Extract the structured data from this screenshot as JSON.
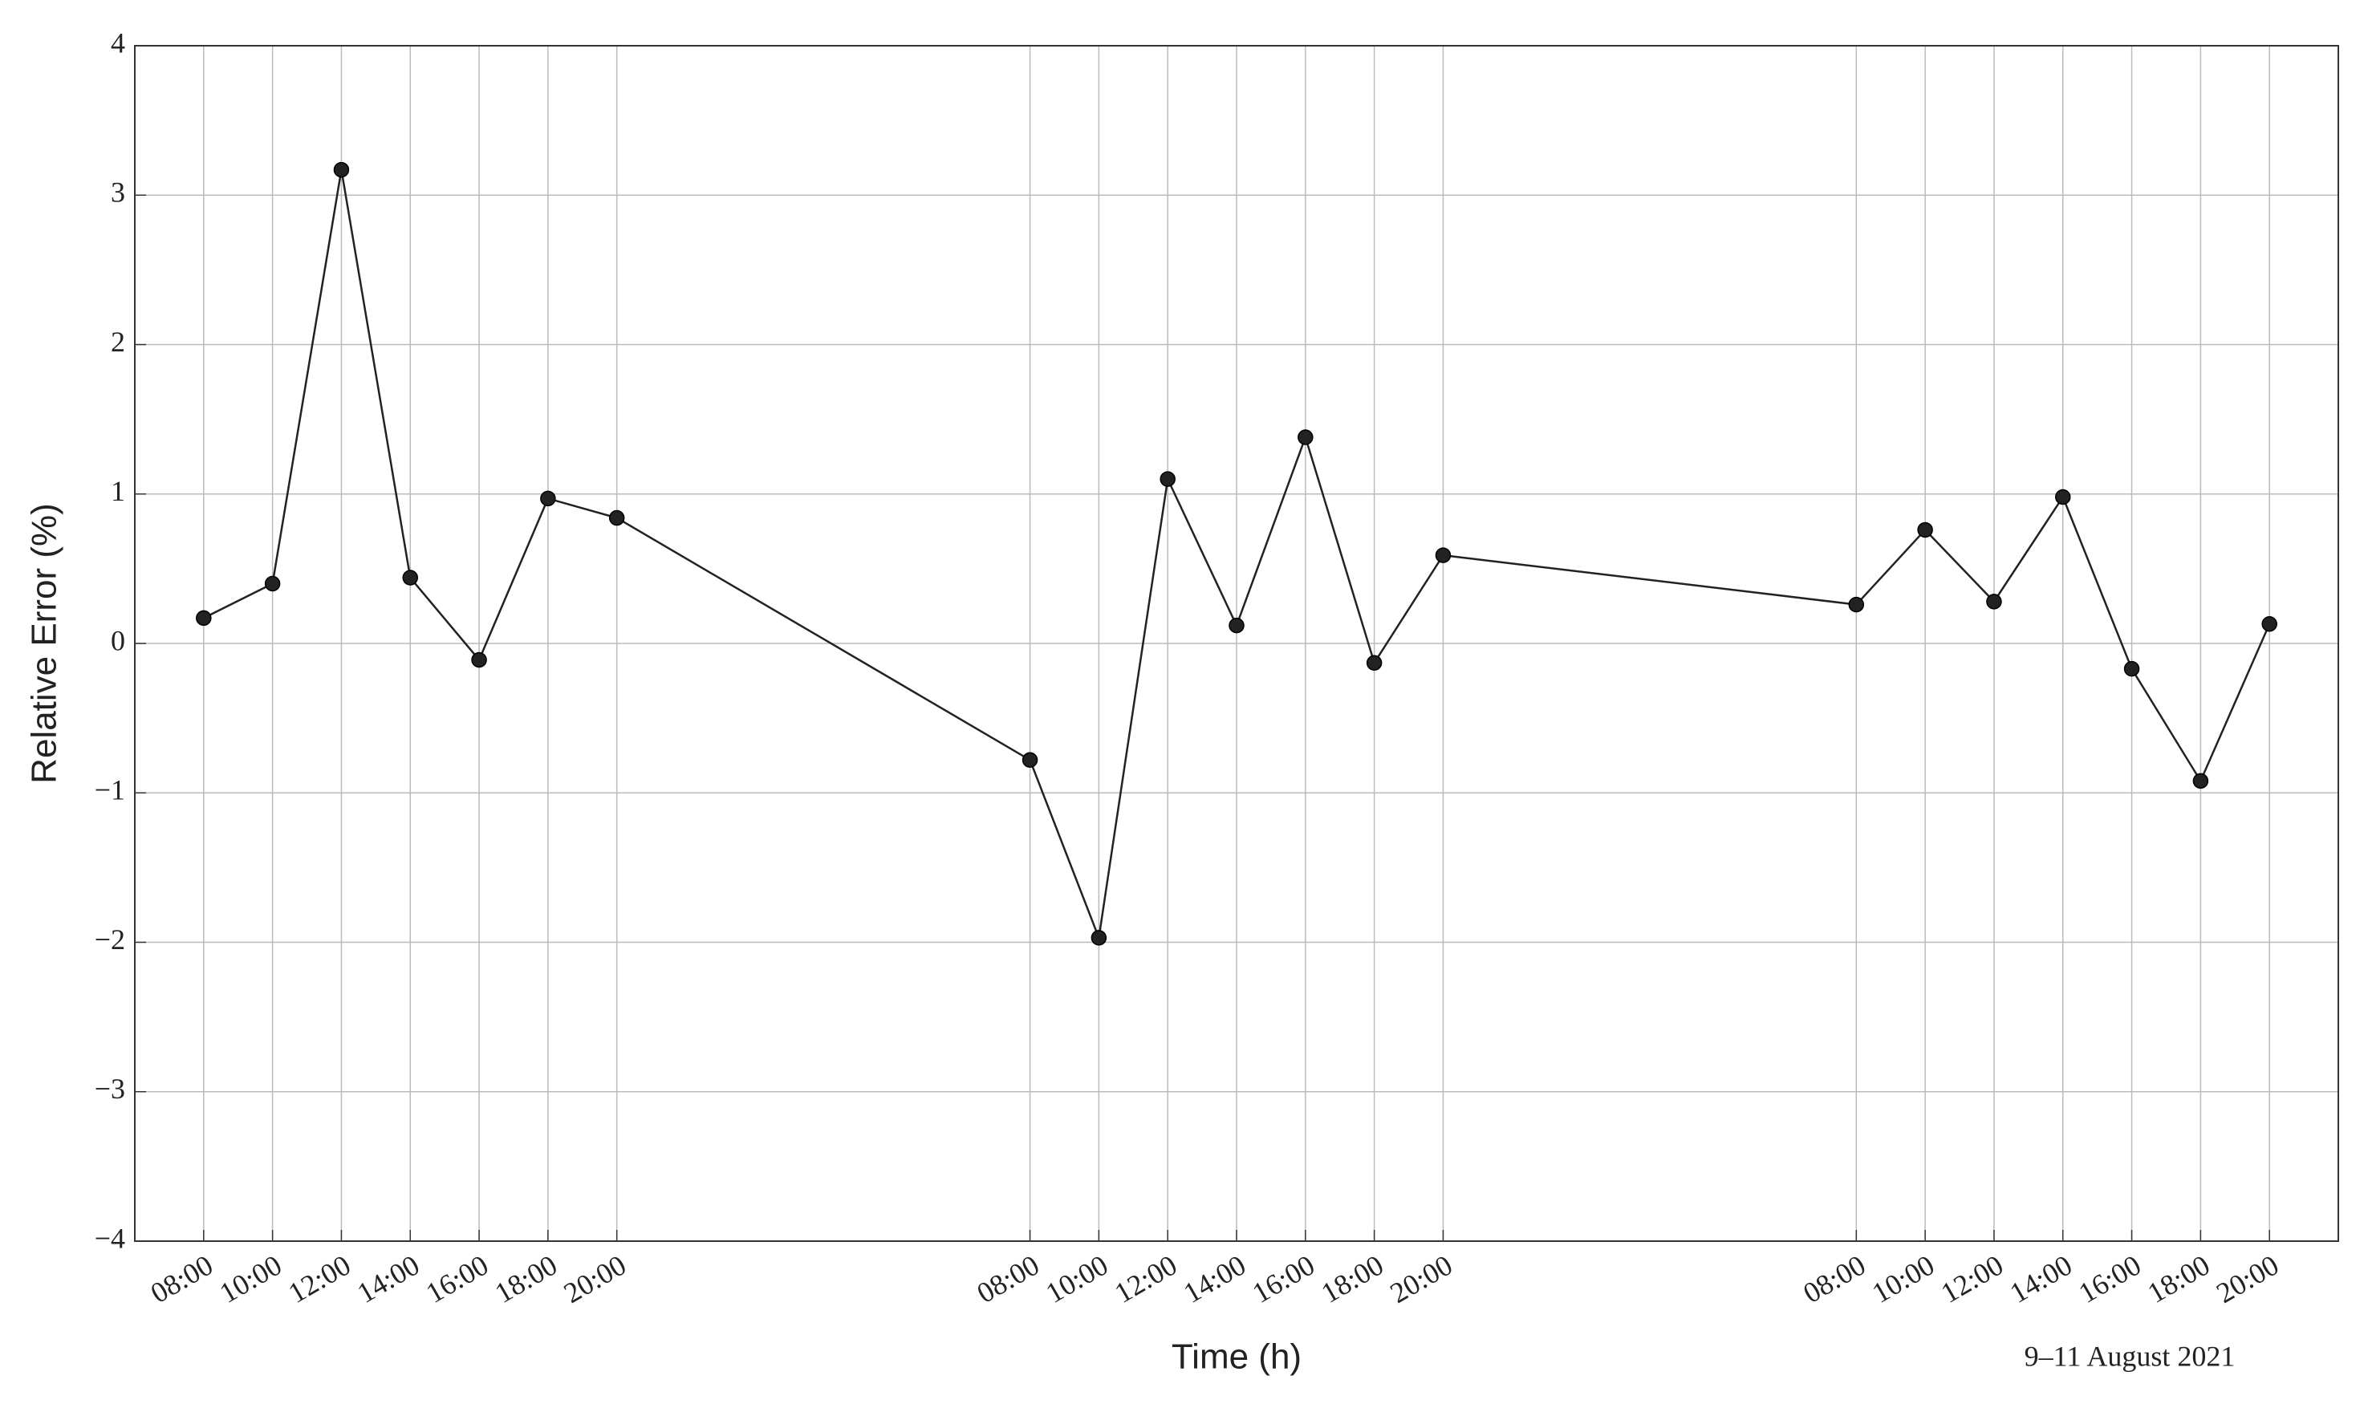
{
  "chart_data": {
    "type": "line",
    "xlabel": "Time (h)",
    "ylabel": "Relative Error (%)",
    "annotation": "9–11 August 2021",
    "x": [
      8,
      10,
      12,
      14,
      16,
      18,
      20,
      32,
      34,
      36,
      38,
      40,
      42,
      44,
      56,
      58,
      60,
      62,
      64,
      66,
      68
    ],
    "values": [
      0.17,
      0.4,
      3.17,
      0.44,
      -0.11,
      0.97,
      0.84,
      -0.78,
      -1.97,
      1.1,
      0.12,
      1.38,
      -0.13,
      0.59,
      0.26,
      0.76,
      0.28,
      0.98,
      -0.17,
      -0.92,
      0.13
    ],
    "color": "#222222",
    "xlim": [
      6,
      70
    ],
    "xticks": [
      {
        "value": 8,
        "label": "08:00"
      },
      {
        "value": 10,
        "label": "10:00"
      },
      {
        "value": 12,
        "label": "12:00"
      },
      {
        "value": 14,
        "label": "14:00"
      },
      {
        "value": 16,
        "label": "16:00"
      },
      {
        "value": 18,
        "label": "18:00"
      },
      {
        "value": 20,
        "label": "20:00"
      },
      {
        "value": 32,
        "label": "08:00"
      },
      {
        "value": 34,
        "label": "10:00"
      },
      {
        "value": 36,
        "label": "12:00"
      },
      {
        "value": 38,
        "label": "14:00"
      },
      {
        "value": 40,
        "label": "16:00"
      },
      {
        "value": 42,
        "label": "18:00"
      },
      {
        "value": 44,
        "label": "20:00"
      },
      {
        "value": 56,
        "label": "08:00"
      },
      {
        "value": 58,
        "label": "10:00"
      },
      {
        "value": 60,
        "label": "12:00"
      },
      {
        "value": 62,
        "label": "14:00"
      },
      {
        "value": 64,
        "label": "16:00"
      },
      {
        "value": 66,
        "label": "18:00"
      },
      {
        "value": 68,
        "label": "20:00"
      }
    ],
    "ylim": [
      -4,
      4
    ],
    "yticks": [
      {
        "value": -4,
        "label": "−4"
      },
      {
        "value": -3,
        "label": "−3"
      },
      {
        "value": -2,
        "label": "−2"
      },
      {
        "value": -1,
        "label": "−1"
      },
      0,
      1,
      2,
      3,
      4
    ],
    "grid": true
  }
}
